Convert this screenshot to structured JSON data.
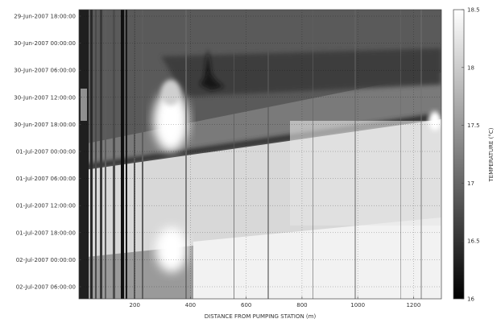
{
  "chart_data": {
    "type": "heatmap",
    "xlabel": "DISTANCE FROM PUMPING STATION (m)",
    "ylabel": "",
    "colorbar_label": "TEMPERATURE (°C)",
    "xlim": [
      0,
      1300
    ],
    "x_ticks": [
      200,
      400,
      600,
      800,
      1000,
      1200
    ],
    "y_ticks": [
      "29-Jun-2007 18:00:00",
      "30-Jun-2007 00:00:00",
      "30-Jun-2007 06:00:00",
      "30-Jun-2007 12:00:00",
      "30-Jun-2007 18:00:00",
      "01-Jul-2007 00:00:00",
      "01-Jul-2007 06:00:00",
      "01-Jul-2007 12:00:00",
      "01-Jul-2007 18:00:00",
      "02-Jul-2007 00:00:00",
      "02-Jul-2007 06:00:00"
    ],
    "colorbar_ticks": [
      16,
      16.5,
      17,
      17.5,
      18,
      18.5
    ],
    "colorbar_range": [
      16,
      18.5
    ],
    "colormap": "gray",
    "grid": true,
    "colorbar_position": "right"
  }
}
